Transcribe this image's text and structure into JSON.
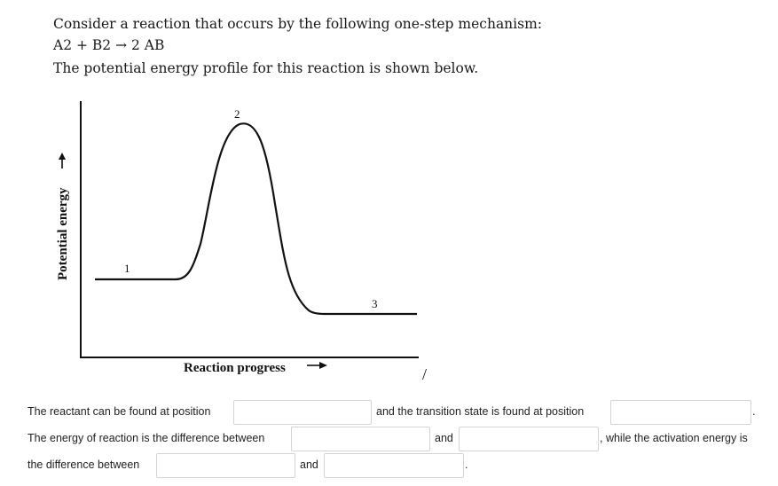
{
  "intro": {
    "line1": "Consider a reaction that occurs by the following one-step mechanism:",
    "line2": "A2 + B2 → 2 AB",
    "line3": "The potential energy profile for this reaction is shown below."
  },
  "diagram": {
    "y_label": "Potential energy",
    "x_label": "Reaction progress",
    "positions": [
      "1",
      "2",
      "3"
    ],
    "stray_mark": "/"
  },
  "questions": {
    "q1_text": "The reactant can be found at position",
    "q1_mid": "and the transition state is found at position",
    "q1_end": ".",
    "q2_text": "The energy of reaction is the difference between",
    "q2_and": "and",
    "q2_end": ", while the activation energy is",
    "q3_text": "the difference between",
    "q3_and": "and",
    "q3_end": ".",
    "answers": {
      "reactant_position": "",
      "transition_state_position": "",
      "reaction_energy_a": "",
      "reaction_energy_b": "",
      "activation_energy_a": "",
      "activation_energy_b": ""
    }
  }
}
